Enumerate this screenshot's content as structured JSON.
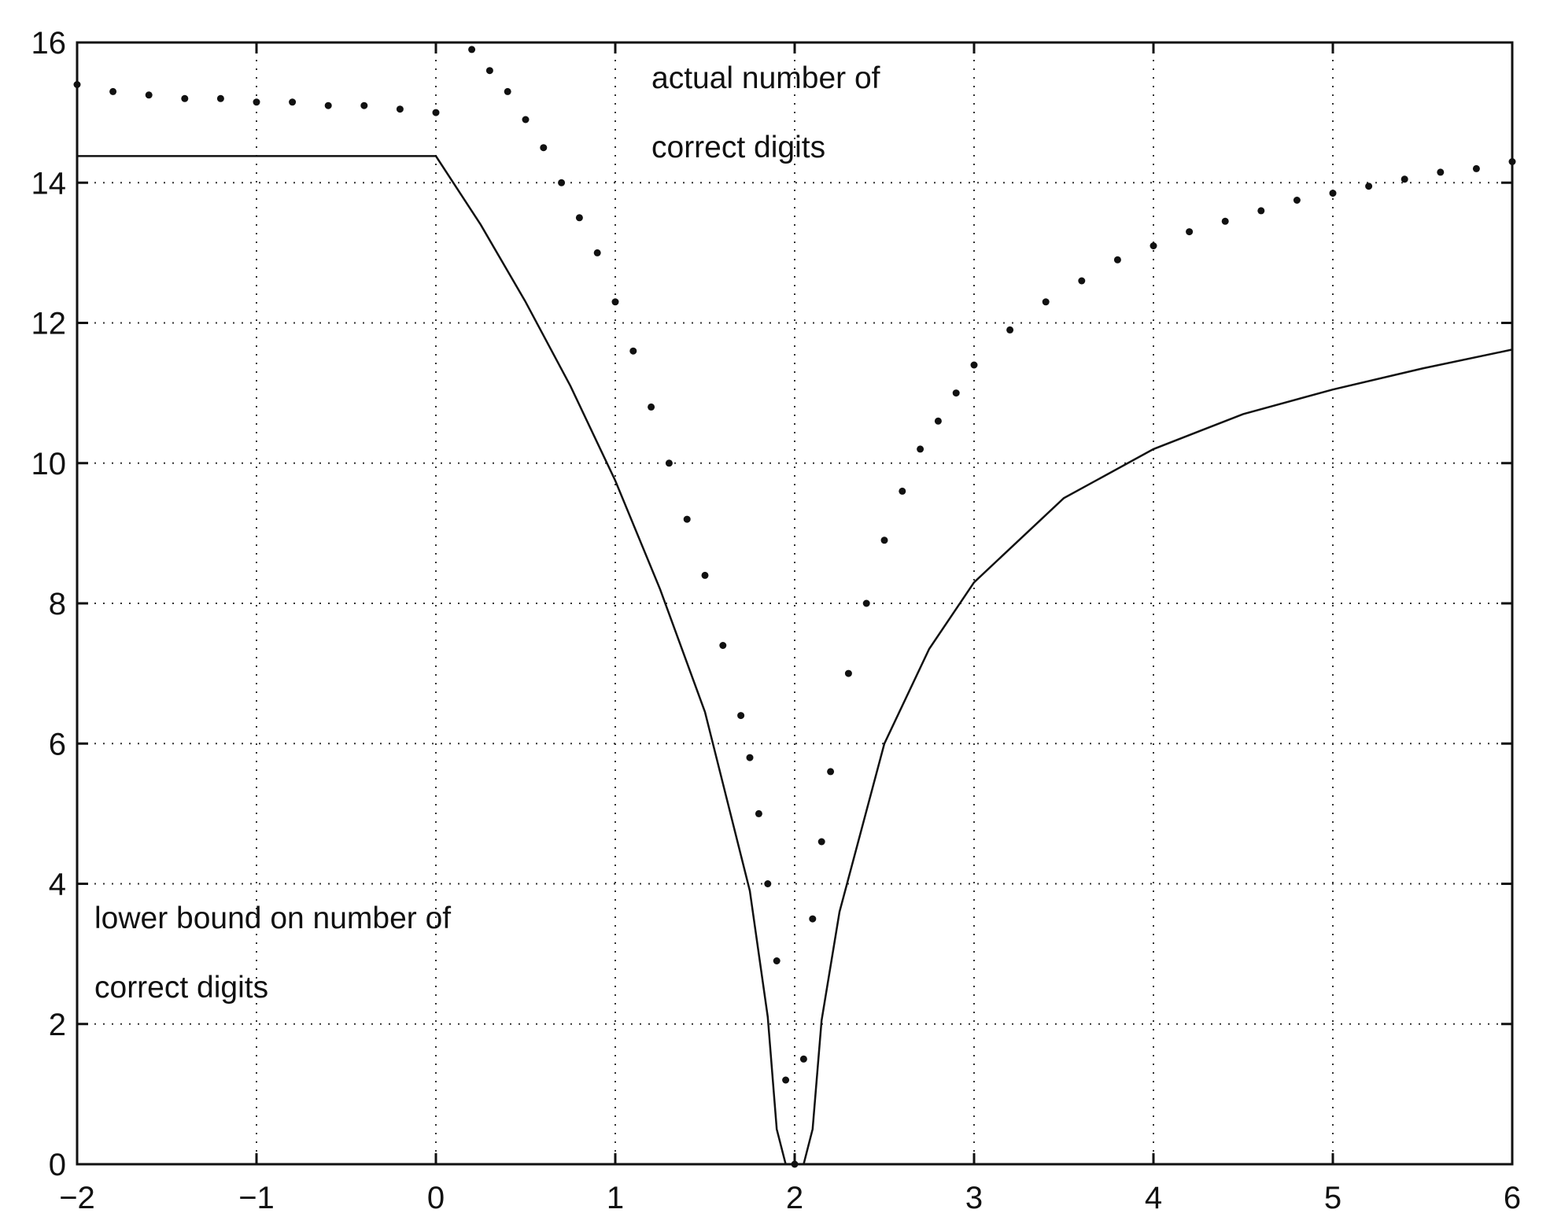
{
  "chart_data": {
    "type": "scatter",
    "title": "",
    "xlabel": "",
    "ylabel": "",
    "xlim": [
      -2,
      6
    ],
    "ylim": [
      0,
      16
    ],
    "xticks": [
      -2,
      -1,
      0,
      1,
      2,
      3,
      4,
      5,
      6
    ],
    "yticks": [
      0,
      2,
      4,
      6,
      8,
      10,
      12,
      14,
      16
    ],
    "xtick_labels": [
      "−2",
      "−1",
      "0",
      "1",
      "2",
      "3",
      "4",
      "5",
      "6"
    ],
    "ytick_labels": [
      "0",
      "2",
      "4",
      "6",
      "8",
      "10",
      "12",
      "14",
      "16"
    ],
    "grid": true,
    "annotations": [
      {
        "lines": [
          "actual number of",
          "correct digits"
        ]
      },
      {
        "lines": [
          "lower bound on number of",
          "correct digits"
        ]
      }
    ],
    "series": [
      {
        "style": "points",
        "description_points": "actual number of correct digits (scattered samples)",
        "x": [
          -2.0,
          -1.8,
          -1.6,
          -1.4,
          -1.2,
          -1.0,
          -0.8,
          -0.6,
          -0.4,
          -0.2,
          0.0,
          0.2,
          0.3,
          0.4,
          0.5,
          0.6,
          0.7,
          0.8,
          0.9,
          1.0,
          1.1,
          1.2,
          1.3,
          1.4,
          1.5,
          1.6,
          1.7,
          1.75,
          1.8,
          1.85,
          1.9,
          1.95,
          2.0,
          2.05,
          2.1,
          2.15,
          2.2,
          2.3,
          2.4,
          2.5,
          2.6,
          2.7,
          2.8,
          2.9,
          3.0,
          3.2,
          3.4,
          3.6,
          3.8,
          4.0,
          4.2,
          4.4,
          4.6,
          4.8,
          5.0,
          5.2,
          5.4,
          5.6,
          5.8,
          6.0
        ],
        "y": [
          15.4,
          15.3,
          15.25,
          15.2,
          15.2,
          15.15,
          15.15,
          15.1,
          15.1,
          15.05,
          15.0,
          15.9,
          15.6,
          15.3,
          14.9,
          14.5,
          14.0,
          13.5,
          13.0,
          12.3,
          11.6,
          10.8,
          10.0,
          9.2,
          8.4,
          7.4,
          6.4,
          5.8,
          5.0,
          4.0,
          2.9,
          1.2,
          0.0,
          1.5,
          3.5,
          4.6,
          5.6,
          7.0,
          8.0,
          8.9,
          9.6,
          10.2,
          10.6,
          11.0,
          11.4,
          11.9,
          12.3,
          12.6,
          12.9,
          13.1,
          13.3,
          13.45,
          13.6,
          13.75,
          13.85,
          13.95,
          14.05,
          14.15,
          14.2,
          14.3
        ]
      },
      {
        "style": "line",
        "description_line": "lower bound on number of correct digits",
        "x": [
          -2.0,
          -1.0,
          0.0,
          0.25,
          0.5,
          0.75,
          1.0,
          1.25,
          1.5,
          1.75,
          1.85,
          1.9,
          1.95,
          2.05,
          2.1,
          2.15,
          2.25,
          2.5,
          2.75,
          3.0,
          3.5,
          4.0,
          4.5,
          5.0,
          5.5,
          6.0
        ],
        "y": [
          14.38,
          14.38,
          14.38,
          13.4,
          12.3,
          11.1,
          9.75,
          8.2,
          6.45,
          3.9,
          2.1,
          0.5,
          0.0,
          0.0,
          0.5,
          2.05,
          3.6,
          6.0,
          7.35,
          8.3,
          9.5,
          10.2,
          10.7,
          11.05,
          11.35,
          11.62
        ]
      }
    ]
  }
}
